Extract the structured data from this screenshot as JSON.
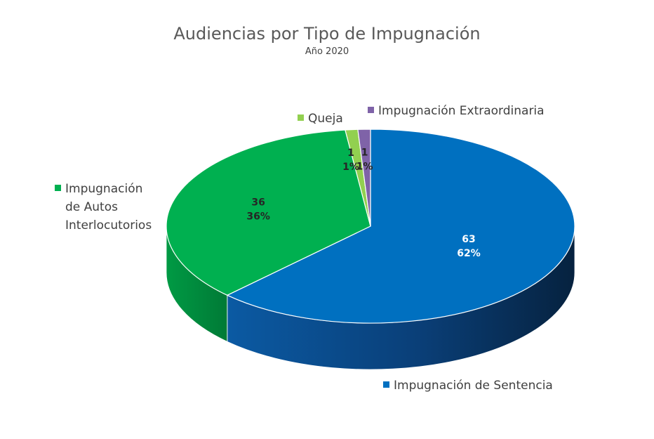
{
  "chart_data": {
    "type": "pie",
    "title": "Audiencias por Tipo de Impugnación",
    "subtitle": "Año 2020",
    "slices": [
      {
        "label": "Impugnación de Sentencia",
        "value": 63,
        "percent": "62%",
        "color": "#0070c0"
      },
      {
        "label": "Impugnación de Autos Interlocutorios",
        "value": 36,
        "percent": "36%",
        "color": "#00b050"
      },
      {
        "label": "Queja",
        "value": 1,
        "percent": "1%",
        "color": "#92d050"
      },
      {
        "label": "Impugnación Extraordinaria",
        "value": 1,
        "percent": "1%",
        "color": "#7f63a8"
      }
    ]
  },
  "legend": {
    "sentencia": "Impugnación de Sentencia",
    "autos_lines": [
      "Impugnación",
      "de Autos",
      "Interlocutorios"
    ],
    "queja": "Queja",
    "extraordinaria": "Impugnación Extraordinaria"
  }
}
